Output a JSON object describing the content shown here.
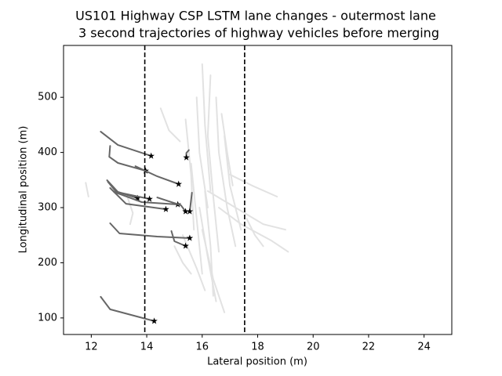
{
  "chart_data": {
    "type": "line",
    "title": "US101 Highway CSP LSTM lane changes - outermost lane",
    "subtitle": "3 second trajectories of highway vehicles before merging",
    "xlabel": "Lateral position (m)",
    "ylabel": "Longitudinal position (m)",
    "xlim": [
      11,
      25
    ],
    "ylim": [
      70,
      594
    ],
    "xticks": [
      12,
      14,
      16,
      18,
      20,
      22,
      24
    ],
    "yticks": [
      100,
      200,
      300,
      400,
      500
    ],
    "vlines": {
      "color": "#000000",
      "x": [
        13.93,
        17.53
      ]
    },
    "background": {
      "color": "#e2e2e2",
      "lines": [
        {
          "x": [
            16.0,
            16.1,
            16.3
          ],
          "y": [
            560,
            450,
            330
          ]
        },
        {
          "x": [
            16.3,
            16.2,
            16.4,
            16.6
          ],
          "y": [
            540,
            430,
            320,
            220
          ]
        },
        {
          "x": [
            15.8,
            15.9,
            16.2
          ],
          "y": [
            500,
            400,
            300
          ]
        },
        {
          "x": [
            16.5,
            16.6,
            16.9,
            17.2
          ],
          "y": [
            500,
            400,
            300,
            230
          ]
        },
        {
          "x": [
            15.6,
            15.8,
            16.0
          ],
          "y": [
            380,
            280,
            180
          ]
        },
        {
          "x": [
            16.1,
            16.3,
            16.4
          ],
          "y": [
            330,
            230,
            140
          ]
        },
        {
          "x": [
            16.8,
            17.0,
            17.4
          ],
          "y": [
            430,
            340,
            260
          ]
        },
        {
          "x": [
            15.4,
            15.6,
            15.7
          ],
          "y": [
            460,
            360,
            260
          ]
        },
        {
          "x": [
            16.6,
            17.4,
            18.5,
            19.1
          ],
          "y": [
            300,
            270,
            240,
            220
          ]
        },
        {
          "x": [
            16.2,
            17.2,
            18.2,
            19.0
          ],
          "y": [
            330,
            300,
            270,
            260
          ]
        },
        {
          "x": [
            17.0,
            17.8,
            18.7
          ],
          "y": [
            360,
            340,
            320
          ]
        },
        {
          "x": [
            16.0,
            16.4,
            16.8
          ],
          "y": [
            260,
            170,
            110
          ]
        },
        {
          "x": [
            15.9,
            16.2,
            16.5
          ],
          "y": [
            300,
            210,
            130
          ]
        },
        {
          "x": [
            11.8,
            11.9
          ],
          "y": [
            345,
            320
          ]
        },
        {
          "x": [
            13.3,
            13.5,
            13.4
          ],
          "y": [
            320,
            290,
            270
          ]
        },
        {
          "x": [
            14.5,
            14.8,
            15.2
          ],
          "y": [
            480,
            440,
            420
          ]
        },
        {
          "x": [
            17.6,
            17.9,
            18.2
          ],
          "y": [
            280,
            250,
            230
          ]
        },
        {
          "x": [
            15.3,
            15.8,
            16.1
          ],
          "y": [
            250,
            190,
            150
          ]
        },
        {
          "x": [
            16.7,
            16.9,
            17.1
          ],
          "y": [
            470,
            400,
            340
          ]
        },
        {
          "x": [
            15.0,
            15.3,
            15.6
          ],
          "y": [
            230,
            200,
            180
          ]
        }
      ]
    },
    "trajectories": {
      "color": "#666666",
      "marker_color": "#000000",
      "lines": [
        {
          "x": [
            12.34,
            12.96,
            14.16
          ],
          "y": [
            437.6,
            413.5,
            393.6
          ]
        },
        {
          "x": [
            12.68,
            12.65,
            12.96,
            13.96
          ],
          "y": [
            412,
            392,
            381,
            366.7
          ]
        },
        {
          "x": [
            13.59,
            14.38,
            15.15
          ],
          "y": [
            375,
            356.7,
            342.6
          ]
        },
        {
          "x": [
            15.52,
            15.43,
            15.43
          ],
          "y": [
            404.3,
            399,
            390.8
          ]
        },
        {
          "x": [
            12.57,
            12.96,
            13.67
          ],
          "y": [
            349.6,
            328.4,
            317
          ]
        },
        {
          "x": [
            12.6,
            12.9,
            14.1
          ],
          "y": [
            346.8,
            328.4,
            315.6
          ]
        },
        {
          "x": [
            12.82,
            13.82,
            15.12
          ],
          "y": [
            328.4,
            310,
            305.7
          ]
        },
        {
          "x": [
            12.68,
            13.25,
            14.69
          ],
          "y": [
            335.5,
            307,
            297
          ]
        },
        {
          "x": [
            14.38,
            15.23,
            15.4
          ],
          "y": [
            318.4,
            304.3,
            293
          ]
        },
        {
          "x": [
            15.63,
            15.55
          ],
          "y": [
            327,
            293
          ]
        },
        {
          "x": [
            12.68,
            13.02,
            14.38,
            15.55
          ],
          "y": [
            271.6,
            253.2,
            247.5,
            244.7
          ]
        },
        {
          "x": [
            14.89,
            15.0,
            15.4
          ],
          "y": [
            257.4,
            239,
            230.5
          ]
        },
        {
          "x": [
            12.34,
            12.68,
            14.27
          ],
          "y": [
            138.3,
            115.6,
            94.3
          ]
        }
      ]
    }
  }
}
